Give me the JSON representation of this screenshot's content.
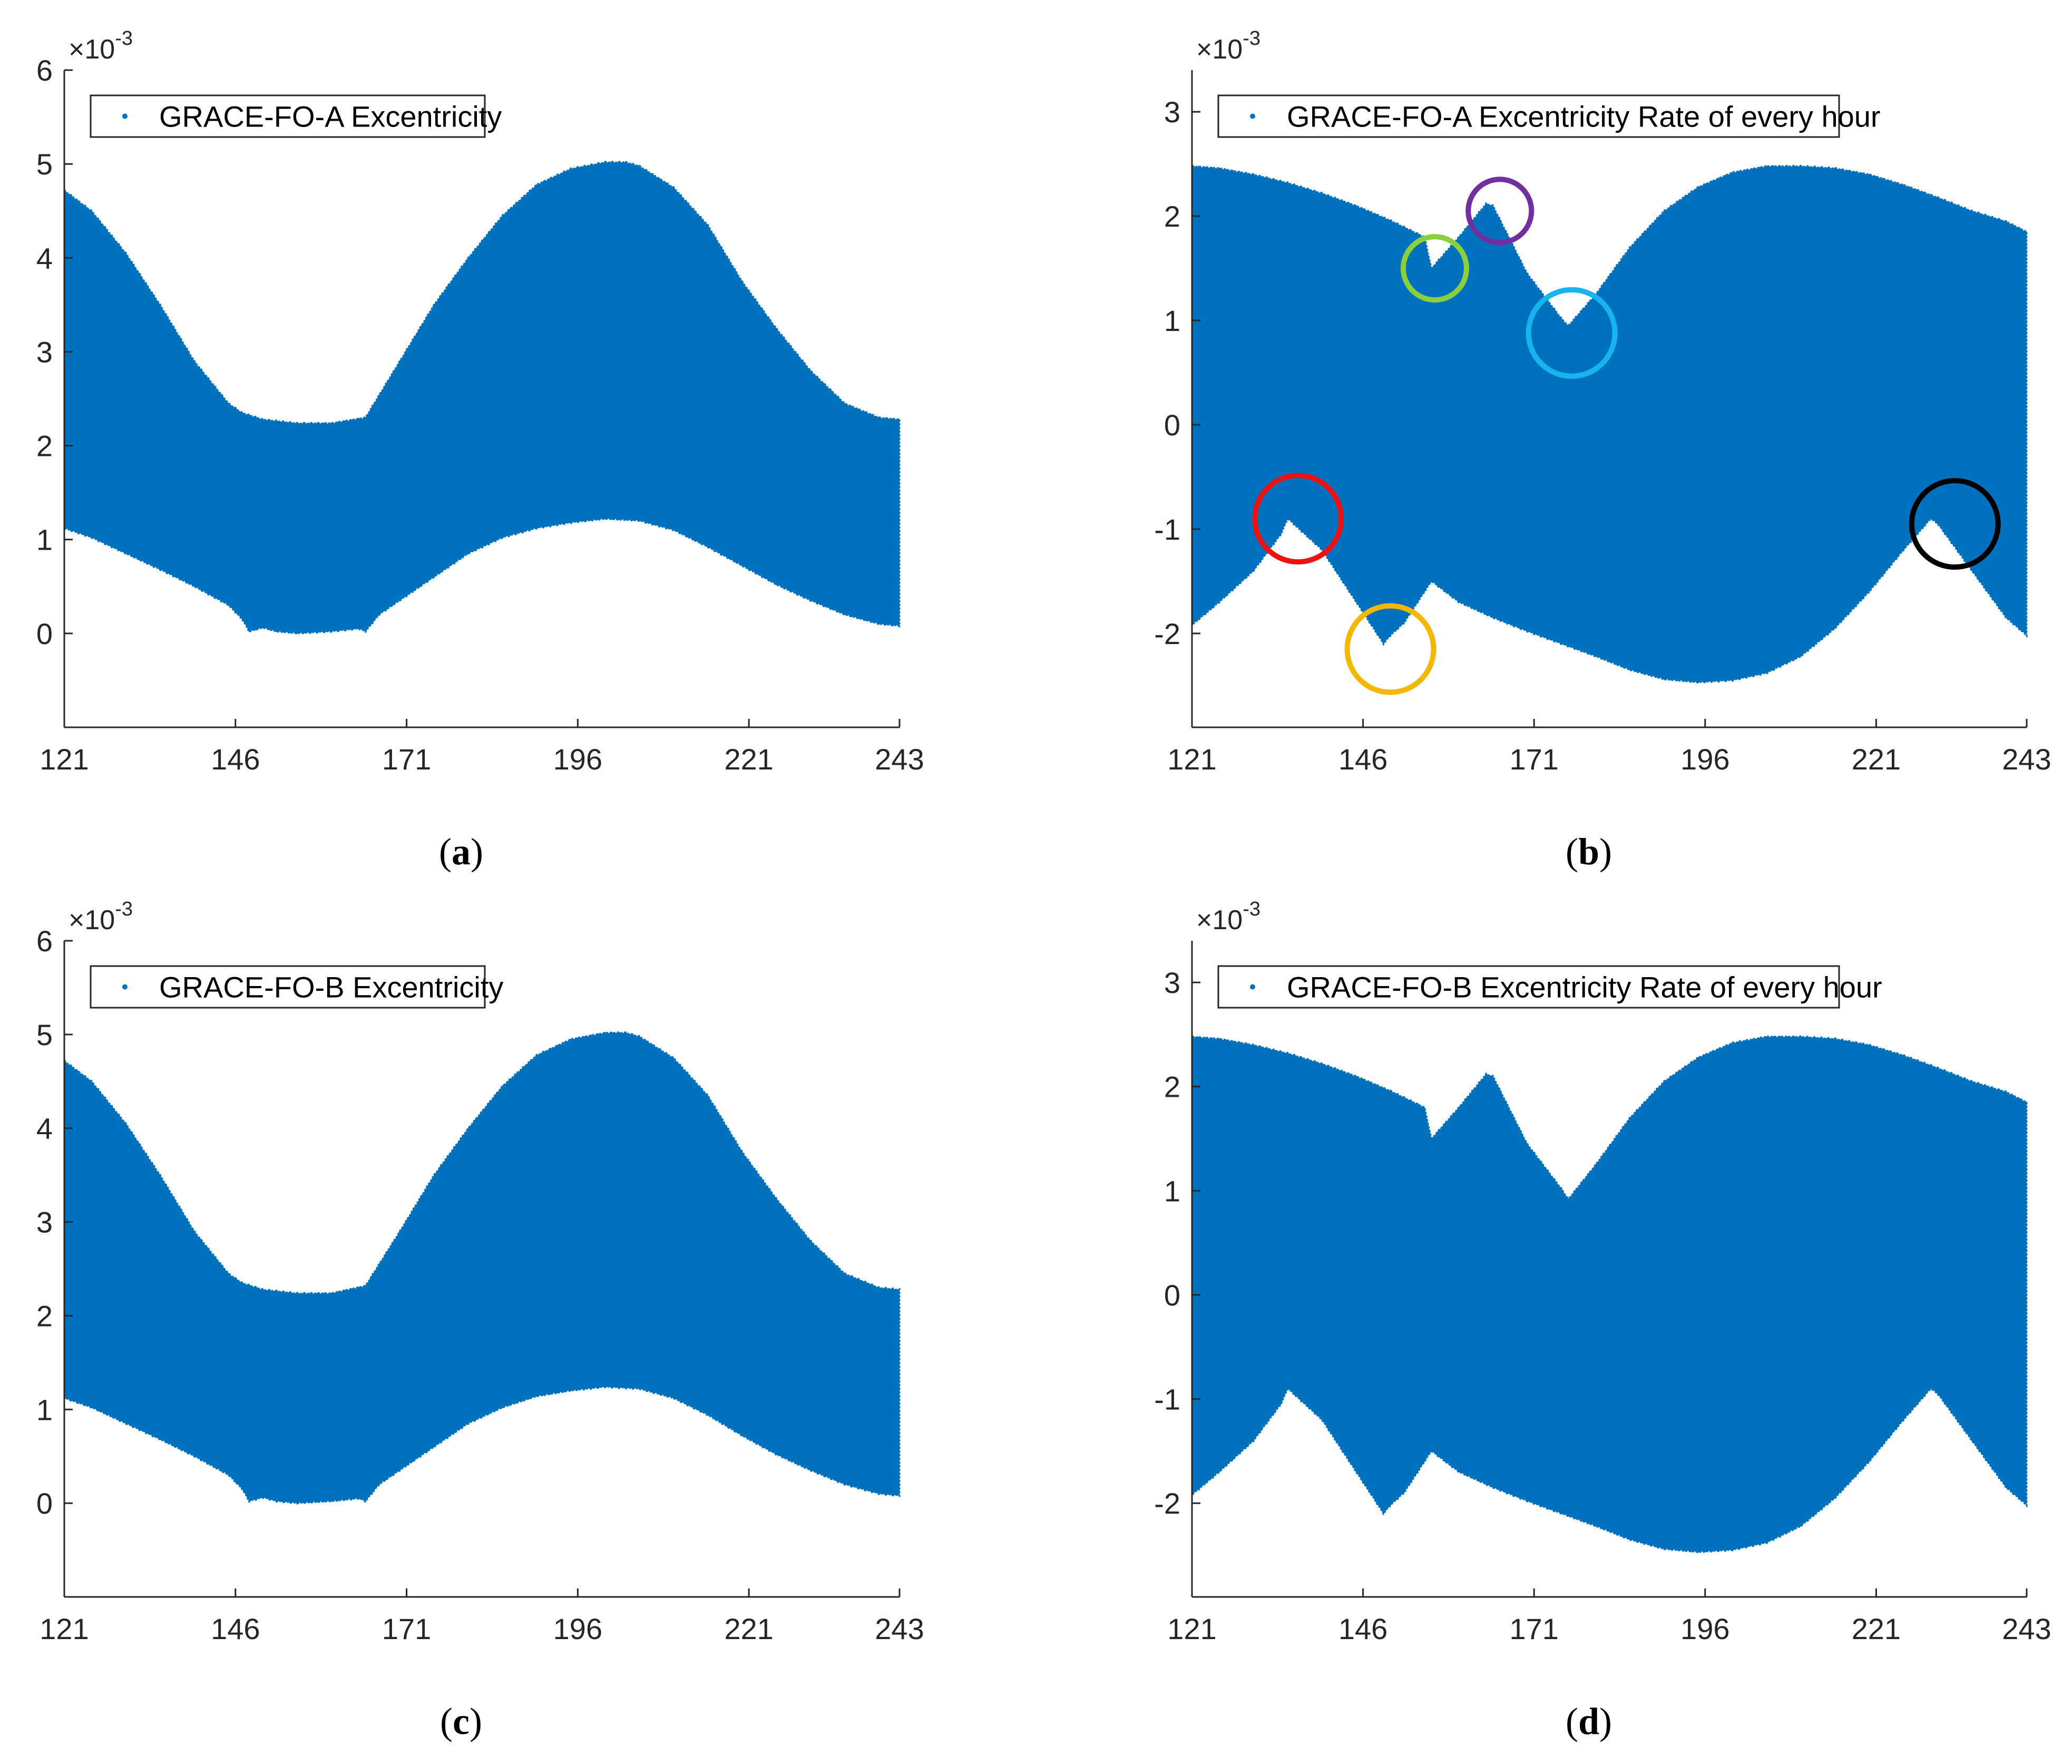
{
  "figure": {
    "series_color": "#0072BD",
    "axis_color": "#262626"
  },
  "chart_data": [
    {
      "type": "area",
      "panel": "a",
      "caption_open": "(",
      "caption_letter": "a",
      "caption_close": ")",
      "legend": "GRACE-FO-A Excentricity",
      "exponent_base": "×10",
      "exponent_power": "-3",
      "xlim": [
        121,
        243
      ],
      "ylim": [
        -1,
        6
      ],
      "xticks": [
        121,
        146,
        171,
        196,
        221,
        243
      ],
      "yticks": [
        0,
        1,
        2,
        3,
        4,
        5,
        6
      ],
      "series_color": "#0072BD",
      "upper_envelope": {
        "x": [
          121,
          125,
          130,
          135,
          140,
          145,
          147,
          150,
          155,
          160,
          165,
          170,
          175,
          180,
          185,
          190,
          195,
          200,
          203,
          205,
          210,
          215,
          220,
          225,
          230,
          235,
          240,
          243
        ],
        "y": [
          4.72,
          4.5,
          4.05,
          3.5,
          2.9,
          2.45,
          2.35,
          2.28,
          2.24,
          2.24,
          2.3,
          2.9,
          3.5,
          4.0,
          4.45,
          4.78,
          4.95,
          5.02,
          5.02,
          4.98,
          4.75,
          4.35,
          3.75,
          3.25,
          2.8,
          2.45,
          2.3,
          2.28
        ]
      },
      "lower_envelope": {
        "x": [
          121,
          125,
          130,
          135,
          140,
          145,
          147,
          148,
          150,
          152,
          155,
          160,
          164,
          165,
          167,
          170,
          175,
          180,
          185,
          190,
          195,
          200,
          205,
          210,
          215,
          220,
          225,
          230,
          235,
          240,
          243
        ],
        "y": [
          1.12,
          1.02,
          0.85,
          0.68,
          0.5,
          0.3,
          0.15,
          0.02,
          0.06,
          0.02,
          0.0,
          0.02,
          0.05,
          0.02,
          0.2,
          0.35,
          0.6,
          0.85,
          1.02,
          1.12,
          1.18,
          1.22,
          1.2,
          1.1,
          0.92,
          0.72,
          0.52,
          0.35,
          0.2,
          0.1,
          0.08
        ]
      },
      "annotations": []
    },
    {
      "type": "area",
      "panel": "b",
      "caption_open": "(",
      "caption_letter": "b",
      "caption_close": ")",
      "legend": "GRACE-FO-A Excentricity Rate of every hour",
      "exponent_base": "×10",
      "exponent_power": "-3",
      "xlim": [
        121,
        243
      ],
      "ylim": [
        -2.9,
        3.4
      ],
      "xticks": [
        121,
        146,
        171,
        196,
        221,
        243
      ],
      "yticks": [
        -2,
        -1,
        0,
        1,
        2,
        3
      ],
      "series_color": "#0072BD",
      "upper_envelope": {
        "x": [
          121,
          125,
          130,
          135,
          140,
          145,
          150,
          155,
          156,
          160,
          164,
          165,
          170,
          175,
          176,
          180,
          185,
          190,
          195,
          200,
          205,
          210,
          215,
          220,
          225,
          230,
          235,
          240,
          243
        ],
        "y": [
          2.48,
          2.46,
          2.4,
          2.32,
          2.22,
          2.1,
          1.96,
          1.8,
          1.5,
          1.8,
          2.12,
          2.1,
          1.45,
          1.02,
          0.95,
          1.25,
          1.7,
          2.05,
          2.28,
          2.42,
          2.48,
          2.48,
          2.46,
          2.4,
          2.3,
          2.18,
          2.05,
          1.95,
          1.85
        ]
      },
      "lower_envelope": {
        "x": [
          121,
          125,
          130,
          134,
          135,
          140,
          145,
          149,
          150,
          152,
          156,
          160,
          165,
          170,
          175,
          180,
          185,
          190,
          195,
          200,
          205,
          210,
          215,
          220,
          225,
          229,
          230,
          235,
          240,
          243
        ],
        "y": [
          -1.92,
          -1.7,
          -1.4,
          -1.05,
          -0.9,
          -1.2,
          -1.7,
          -2.1,
          -2.02,
          -1.9,
          -1.5,
          -1.7,
          -1.85,
          -1.98,
          -2.1,
          -2.22,
          -2.35,
          -2.44,
          -2.47,
          -2.45,
          -2.38,
          -2.22,
          -1.95,
          -1.6,
          -1.2,
          -0.9,
          -0.95,
          -1.4,
          -1.85,
          -2.02
        ]
      },
      "annotations": [
        {
          "label": "red-ring",
          "color": "#EE1111",
          "x": 136.5,
          "y": -0.9
        },
        {
          "label": "yellow-ring",
          "color": "#F5B800",
          "x": 150.0,
          "y": -2.15
        },
        {
          "label": "green-ring",
          "color": "#8CCF3D",
          "x": 156.5,
          "y": 1.5
        },
        {
          "label": "purple-ring",
          "color": "#7030A0",
          "x": 166.0,
          "y": 2.05
        },
        {
          "label": "blue-ring",
          "color": "#18B4F0",
          "x": 176.5,
          "y": 0.88
        },
        {
          "label": "black-ring",
          "color": "#000000",
          "x": 232.5,
          "y": -0.95
        }
      ]
    },
    {
      "type": "area",
      "panel": "c",
      "caption_open": "(",
      "caption_letter": "c",
      "caption_close": ")",
      "legend": "GRACE-FO-B Excentricity",
      "exponent_base": "×10",
      "exponent_power": "-3",
      "xlim": [
        121,
        243
      ],
      "ylim": [
        -1,
        6
      ],
      "xticks": [
        121,
        146,
        171,
        196,
        221,
        243
      ],
      "yticks": [
        0,
        1,
        2,
        3,
        4,
        5,
        6
      ],
      "series_color": "#0072BD",
      "upper_envelope": {
        "x": [
          121,
          125,
          130,
          135,
          140,
          145,
          147,
          150,
          155,
          160,
          165,
          170,
          175,
          180,
          185,
          190,
          195,
          200,
          203,
          205,
          210,
          215,
          220,
          225,
          230,
          235,
          240,
          243
        ],
        "y": [
          4.72,
          4.5,
          4.05,
          3.5,
          2.9,
          2.45,
          2.35,
          2.28,
          2.24,
          2.24,
          2.32,
          2.9,
          3.5,
          4.0,
          4.45,
          4.78,
          4.95,
          5.02,
          5.02,
          4.98,
          4.75,
          4.35,
          3.75,
          3.25,
          2.8,
          2.45,
          2.3,
          2.28
        ]
      },
      "lower_envelope": {
        "x": [
          121,
          125,
          130,
          135,
          140,
          145,
          147,
          148,
          150,
          152,
          155,
          160,
          164,
          165,
          167,
          170,
          175,
          180,
          185,
          190,
          195,
          200,
          205,
          210,
          215,
          220,
          225,
          230,
          235,
          240,
          243
        ],
        "y": [
          1.12,
          1.02,
          0.85,
          0.68,
          0.5,
          0.3,
          0.15,
          0.02,
          0.06,
          0.02,
          0.0,
          0.02,
          0.05,
          0.02,
          0.2,
          0.35,
          0.6,
          0.85,
          1.02,
          1.14,
          1.2,
          1.24,
          1.22,
          1.12,
          0.94,
          0.72,
          0.52,
          0.35,
          0.2,
          0.1,
          0.08
        ]
      },
      "annotations": []
    },
    {
      "type": "area",
      "panel": "d",
      "caption_open": "(",
      "caption_letter": "d",
      "caption_close": ")",
      "legend": "GRACE-FO-B Excentricity Rate of every hour",
      "exponent_base": "×10",
      "exponent_power": "-3",
      "xlim": [
        121,
        243
      ],
      "ylim": [
        -2.9,
        3.4
      ],
      "xticks": [
        121,
        146,
        171,
        196,
        221,
        243
      ],
      "yticks": [
        -2,
        -1,
        0,
        1,
        2,
        3
      ],
      "series_color": "#0072BD",
      "upper_envelope": {
        "x": [
          121,
          125,
          130,
          135,
          140,
          145,
          150,
          155,
          156,
          160,
          164,
          165,
          170,
          175,
          176,
          180,
          185,
          190,
          195,
          200,
          205,
          210,
          215,
          220,
          225,
          230,
          235,
          240,
          243
        ],
        "y": [
          2.48,
          2.46,
          2.4,
          2.32,
          2.22,
          2.1,
          1.96,
          1.8,
          1.5,
          1.8,
          2.12,
          2.1,
          1.45,
          1.02,
          0.92,
          1.25,
          1.7,
          2.05,
          2.28,
          2.42,
          2.48,
          2.48,
          2.46,
          2.4,
          2.3,
          2.18,
          2.05,
          1.95,
          1.85
        ]
      },
      "lower_envelope": {
        "x": [
          121,
          125,
          130,
          134,
          135,
          140,
          145,
          149,
          150,
          152,
          156,
          160,
          165,
          170,
          175,
          180,
          185,
          190,
          195,
          200,
          205,
          210,
          215,
          220,
          225,
          229,
          230,
          235,
          240,
          243
        ],
        "y": [
          -1.92,
          -1.7,
          -1.4,
          -1.05,
          -0.9,
          -1.2,
          -1.7,
          -2.1,
          -2.02,
          -1.9,
          -1.5,
          -1.7,
          -1.85,
          -1.98,
          -2.1,
          -2.22,
          -2.35,
          -2.44,
          -2.47,
          -2.45,
          -2.38,
          -2.22,
          -1.95,
          -1.6,
          -1.2,
          -0.9,
          -0.95,
          -1.4,
          -1.85,
          -2.02
        ]
      },
      "annotations": []
    }
  ]
}
